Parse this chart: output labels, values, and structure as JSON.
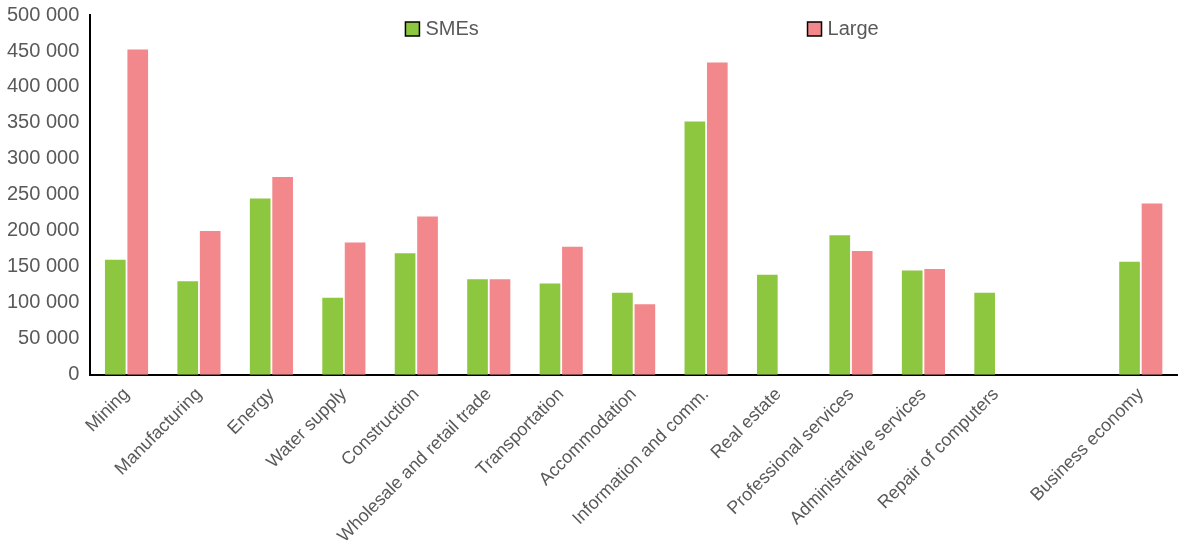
{
  "chart_data": {
    "type": "bar",
    "categories": [
      "Mining",
      "Manufacturing",
      "Energy",
      "Water supply",
      "Construction",
      "Wholesale and retail trade",
      "Transportation",
      "Accommodation",
      "Information and comm.",
      "Real estate",
      "Professional services",
      "Administrative services",
      "Repair of computers",
      null,
      "Business economy"
    ],
    "series": [
      {
        "name": "SMEs",
        "color": "#8dc63f",
        "values": [
          160000,
          130000,
          245000,
          107000,
          169000,
          133000,
          127000,
          114000,
          352000,
          139000,
          194000,
          145000,
          114000,
          null,
          157000
        ]
      },
      {
        "name": "Large",
        "color": "#f2878c",
        "values": [
          452000,
          200000,
          275000,
          184000,
          220000,
          133000,
          178000,
          98000,
          434000,
          null,
          172000,
          147000,
          null,
          null,
          238000
        ]
      }
    ],
    "ylim": [
      0,
      500000
    ],
    "yticks": [
      {
        "value": 0,
        "label": "0"
      },
      {
        "value": 50000,
        "label": "50 000"
      },
      {
        "value": 100000,
        "label": "100 000"
      },
      {
        "value": 150000,
        "label": "150 000"
      },
      {
        "value": 200000,
        "label": "200 000"
      },
      {
        "value": 250000,
        "label": "250 000"
      },
      {
        "value": 300000,
        "label": "300 000"
      },
      {
        "value": 350000,
        "label": "350 000"
      },
      {
        "value": 400000,
        "label": "400 000"
      },
      {
        "value": 450000,
        "label": "450 000"
      },
      {
        "value": 500000,
        "label": "500 000"
      }
    ],
    "grid": false,
    "legend": "top"
  }
}
